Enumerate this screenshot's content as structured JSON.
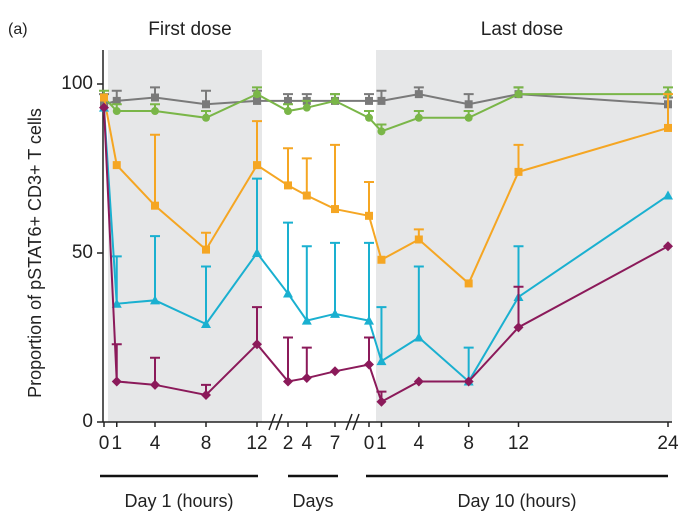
{
  "chart_data": {
    "type": "line",
    "panel_label": "(a)",
    "ylabel": "Proportion of pSTAT6+ CD3+ T cells",
    "annotations": [
      "First dose",
      "Last dose"
    ],
    "ylim": [
      0,
      100
    ],
    "yticks": [
      0,
      50,
      100
    ],
    "segments": [
      {
        "label": "Day 1 (hours)",
        "xlim": [
          0,
          12
        ],
        "x": [
          0,
          1,
          4,
          8,
          12
        ]
      },
      {
        "label": "Days",
        "xlim": [
          2,
          7
        ],
        "x": [
          2,
          4,
          7
        ]
      },
      {
        "label": "Day 10 (hours)",
        "xlim": [
          0,
          24
        ],
        "x": [
          0,
          1,
          4,
          8,
          12,
          24
        ]
      }
    ],
    "series": [
      {
        "color": "#7a7a7a",
        "marker": "square",
        "values": [
          94,
          95,
          96,
          94,
          95,
          95,
          95,
          95,
          95,
          95,
          97,
          94,
          97,
          94
        ],
        "errors": [
          3,
          3,
          3,
          4,
          3,
          2,
          2,
          2,
          2,
          3,
          2,
          3,
          2,
          2
        ]
      },
      {
        "color": "#7ab648",
        "marker": "circle",
        "values": [
          96,
          92,
          92,
          90,
          97,
          92,
          93,
          95,
          90,
          86,
          90,
          90,
          97,
          97
        ],
        "errors": [
          2,
          2,
          2,
          2,
          2,
          2,
          2,
          2,
          2,
          2,
          2,
          2,
          2,
          2
        ]
      },
      {
        "color": "#f5a623",
        "marker": "square",
        "values": [
          96,
          76,
          64,
          51,
          76,
          70,
          67,
          63,
          61,
          48,
          54,
          41,
          74,
          87
        ],
        "errors": [
          0,
          0,
          21,
          5,
          13,
          11,
          11,
          19,
          10,
          0,
          3,
          0,
          8,
          10
        ]
      },
      {
        "color": "#1ab0d0",
        "marker": "triangle",
        "values": [
          93,
          35,
          36,
          29,
          50,
          38,
          30,
          32,
          30,
          18,
          25,
          12,
          37,
          67
        ],
        "errors": [
          0,
          14,
          19,
          17,
          22,
          21,
          22,
          21,
          23,
          16,
          21,
          10,
          15,
          0
        ]
      },
      {
        "color": "#8b1a5a",
        "marker": "diamond",
        "values": [
          93,
          12,
          11,
          8,
          23,
          12,
          13,
          15,
          17,
          6,
          12,
          12,
          28,
          52
        ],
        "errors": [
          0,
          11,
          8,
          3,
          11,
          13,
          9,
          0,
          8,
          3,
          0,
          0,
          12,
          0
        ]
      }
    ]
  }
}
